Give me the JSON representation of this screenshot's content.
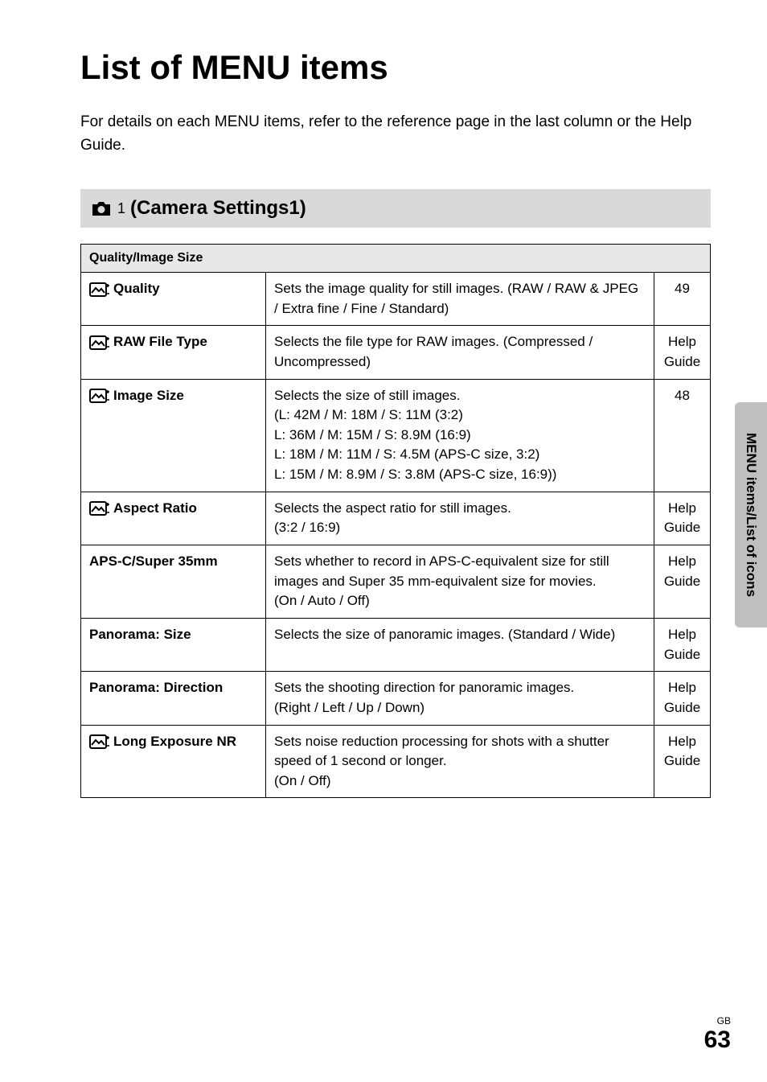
{
  "page": {
    "title": "List of MENU items",
    "intro": "For details on each MENU items, refer to the reference page in the last column or the Help Guide.",
    "section_label": "(Camera Settings1)",
    "side_tab": "MENU items/List of icons",
    "footer_lang": "GB",
    "footer_page": "63"
  },
  "table": {
    "group_header": "Quality/Image Size",
    "rows": [
      {
        "has_icon": true,
        "name": "Quality",
        "desc": "Sets the image quality for still images. (RAW / RAW & JPEG / Extra fine / Fine / Standard)",
        "ref": "49"
      },
      {
        "has_icon": true,
        "name": "RAW File Type",
        "desc": "Selects the file type for RAW images. (Compressed / Uncompressed)",
        "ref": "Help Guide"
      },
      {
        "has_icon": true,
        "name": "Image Size",
        "desc": "Selects the size of still images.\n(L: 42M / M: 18M / S: 11M (3:2)\nL: 36M / M: 15M / S: 8.9M (16:9)\nL: 18M / M: 11M / S: 4.5M (APS-C size, 3:2)\nL: 15M / M: 8.9M / S: 3.8M (APS-C size, 16:9))",
        "ref": "48"
      },
      {
        "has_icon": true,
        "name": "Aspect Ratio",
        "desc": "Selects the aspect ratio for still images.\n(3:2 / 16:9)",
        "ref": "Help Guide"
      },
      {
        "has_icon": false,
        "name": "APS-C/Super 35mm",
        "desc": "Sets whether to record in APS-C-equivalent size for still images and Super 35 mm-equivalent size for movies.\n(On / Auto / Off)",
        "ref": "Help Guide"
      },
      {
        "has_icon": false,
        "name": "Panorama: Size",
        "desc": "Selects the size of panoramic images. (Standard / Wide)",
        "ref": "Help Guide"
      },
      {
        "has_icon": false,
        "name": "Panorama: Direction",
        "desc": "Sets the shooting direction for panoramic images.\n(Right / Left / Up / Down)",
        "ref": "Help Guide"
      },
      {
        "has_icon": true,
        "name": "Long Exposure NR",
        "desc": "Sets noise reduction processing for shots with a shutter speed of 1 second or longer.\n(On / Off)",
        "ref": "Help Guide"
      }
    ]
  },
  "colors": {
    "group_bg": "#e8e8e8",
    "section_bg": "#d9d9d9",
    "tab_bg": "#bfbfbf",
    "border": "#000000",
    "text": "#000000"
  }
}
